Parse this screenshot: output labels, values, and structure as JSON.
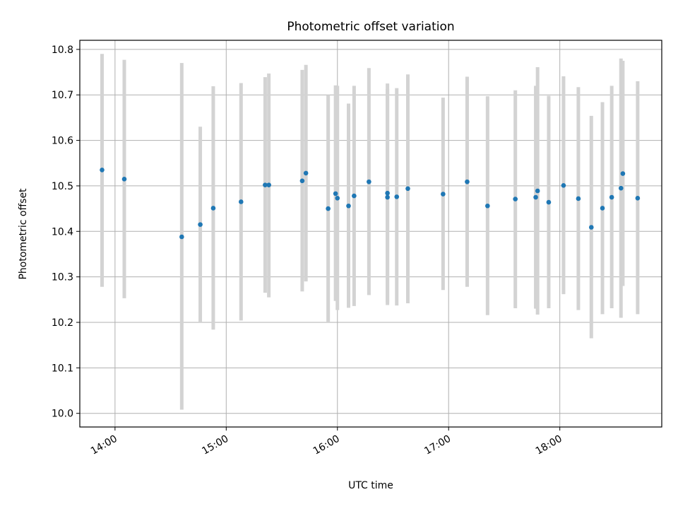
{
  "chart_data": {
    "type": "scatter",
    "title": "Photometric offset variation",
    "xlabel": "UTC time",
    "ylabel": "Photometric offset",
    "xlim": [
      "13:41",
      "18:55"
    ],
    "ylim": [
      9.97,
      10.82
    ],
    "x_ticks": [
      "14:00",
      "15:00",
      "16:00",
      "17:00",
      "18:00"
    ],
    "y_ticks": [
      "10.0",
      "10.1",
      "10.2",
      "10.3",
      "10.4",
      "10.5",
      "10.6",
      "10.7",
      "10.8"
    ],
    "grid": true,
    "point_color": "#1f77b4",
    "errorbar_color": "#d3d3d3",
    "points": [
      {
        "time": "13:53",
        "value": 10.535,
        "low": 10.278,
        "high": 10.79
      },
      {
        "time": "14:05",
        "value": 10.515,
        "low": 10.253,
        "high": 10.777
      },
      {
        "time": "14:36",
        "value": 10.388,
        "low": 10.008,
        "high": 10.77
      },
      {
        "time": "14:46",
        "value": 10.415,
        "low": 10.2,
        "high": 10.63
      },
      {
        "time": "14:53",
        "value": 10.451,
        "low": 10.184,
        "high": 10.719
      },
      {
        "time": "15:08",
        "value": 10.465,
        "low": 10.204,
        "high": 10.726
      },
      {
        "time": "15:21",
        "value": 10.502,
        "low": 10.265,
        "high": 10.739
      },
      {
        "time": "15:23",
        "value": 10.502,
        "low": 10.255,
        "high": 10.747
      },
      {
        "time": "15:41",
        "value": 10.511,
        "low": 10.268,
        "high": 10.755
      },
      {
        "time": "15:43",
        "value": 10.528,
        "low": 10.29,
        "high": 10.766
      },
      {
        "time": "15:55",
        "value": 10.45,
        "low": 10.2,
        "high": 10.7
      },
      {
        "time": "15:59",
        "value": 10.483,
        "low": 10.247,
        "high": 10.721
      },
      {
        "time": "16:00",
        "value": 10.473,
        "low": 10.227,
        "high": 10.72
      },
      {
        "time": "16:06",
        "value": 10.456,
        "low": 10.232,
        "high": 10.681
      },
      {
        "time": "16:09",
        "value": 10.478,
        "low": 10.236,
        "high": 10.72
      },
      {
        "time": "16:17",
        "value": 10.509,
        "low": 10.26,
        "high": 10.759
      },
      {
        "time": "16:27",
        "value": 10.484,
        "low": 10.243,
        "high": 10.725
      },
      {
        "time": "16:27",
        "value": 10.475,
        "low": 10.238,
        "high": 10.713
      },
      {
        "time": "16:32",
        "value": 10.476,
        "low": 10.237,
        "high": 10.715
      },
      {
        "time": "16:38",
        "value": 10.494,
        "low": 10.242,
        "high": 10.745
      },
      {
        "time": "16:57",
        "value": 10.482,
        "low": 10.271,
        "high": 10.694
      },
      {
        "time": "17:10",
        "value": 10.509,
        "low": 10.278,
        "high": 10.74
      },
      {
        "time": "17:21",
        "value": 10.456,
        "low": 10.216,
        "high": 10.697
      },
      {
        "time": "17:36",
        "value": 10.471,
        "low": 10.231,
        "high": 10.71
      },
      {
        "time": "17:47",
        "value": 10.475,
        "low": 10.23,
        "high": 10.72
      },
      {
        "time": "17:48",
        "value": 10.489,
        "low": 10.217,
        "high": 10.761
      },
      {
        "time": "17:54",
        "value": 10.464,
        "low": 10.231,
        "high": 10.698
      },
      {
        "time": "18:02",
        "value": 10.501,
        "low": 10.262,
        "high": 10.741
      },
      {
        "time": "18:10",
        "value": 10.472,
        "low": 10.227,
        "high": 10.717
      },
      {
        "time": "18:17",
        "value": 10.409,
        "low": 10.165,
        "high": 10.654
      },
      {
        "time": "18:23",
        "value": 10.451,
        "low": 10.218,
        "high": 10.684
      },
      {
        "time": "18:28",
        "value": 10.475,
        "low": 10.231,
        "high": 10.72
      },
      {
        "time": "18:33",
        "value": 10.495,
        "low": 10.21,
        "high": 10.78
      },
      {
        "time": "18:34",
        "value": 10.527,
        "low": 10.28,
        "high": 10.775
      },
      {
        "time": "18:42",
        "value": 10.473,
        "low": 10.218,
        "high": 10.73
      }
    ]
  }
}
